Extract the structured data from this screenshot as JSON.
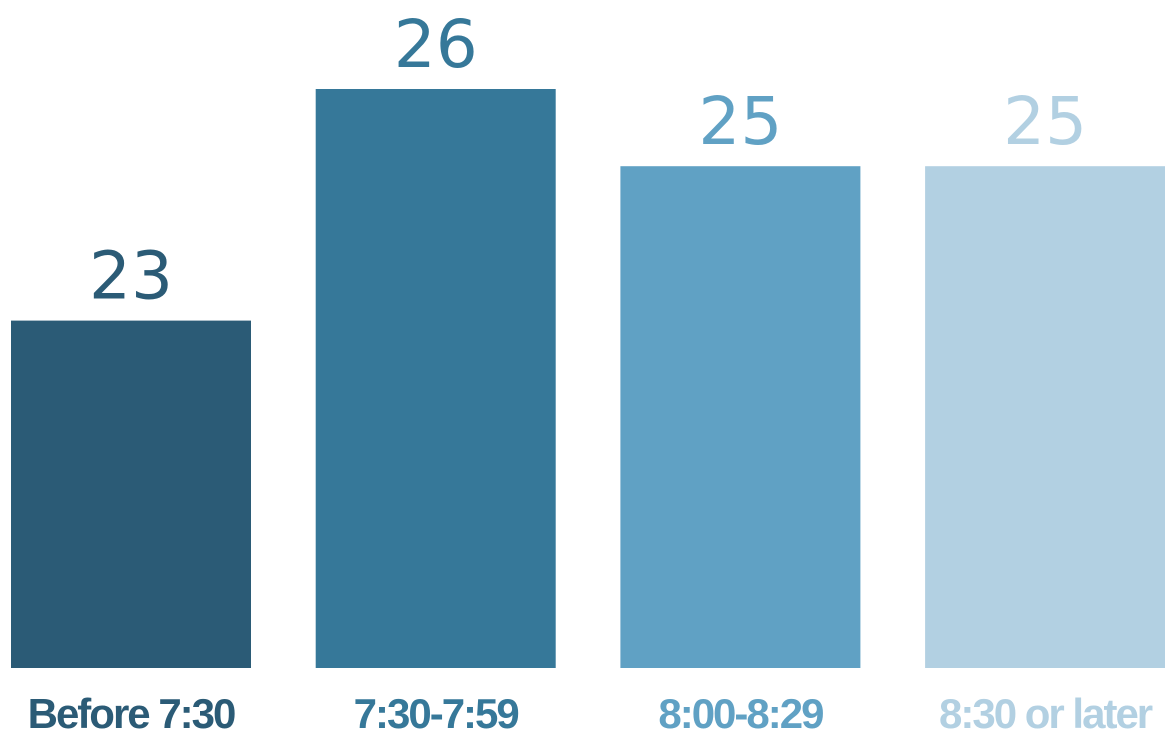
{
  "chart_data": {
    "type": "bar",
    "categories": [
      "Before 7:30",
      "7:30-7:59",
      "8:00-8:29",
      "8:30 or later"
    ],
    "values": [
      23,
      26,
      25,
      25
    ],
    "data_labels": [
      "23",
      "26",
      "25",
      "25"
    ],
    "colors": [
      "#2b5b76",
      "#367899",
      "#60a1c4",
      "#b2d0e2"
    ],
    "ylim": [
      18.5,
      26
    ],
    "grid": false,
    "legend": "none",
    "title": "",
    "xlabel": "",
    "ylabel": ""
  }
}
